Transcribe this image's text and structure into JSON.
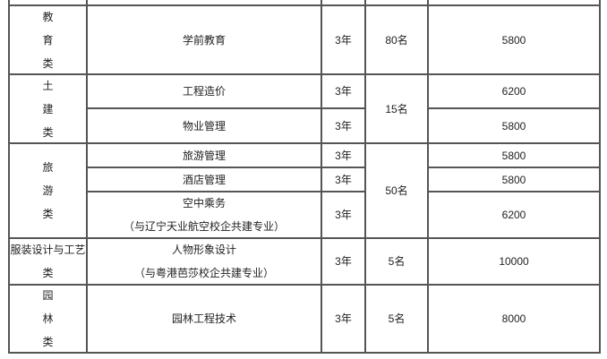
{
  "rows": [
    {
      "category": [
        "教",
        "育",
        "类"
      ],
      "majors": [
        {
          "name": "学前教育",
          "years": "3年",
          "fee": "5800"
        }
      ],
      "quota": "80名"
    },
    {
      "category": [
        "土",
        "建",
        "类"
      ],
      "majors": [
        {
          "name": "工程造价",
          "years": "3年",
          "fee": "6200"
        },
        {
          "name": "物业管理",
          "years": "3年",
          "fee": "5800"
        }
      ],
      "quota": "15名"
    },
    {
      "category": [
        "旅",
        "游",
        "类"
      ],
      "majors": [
        {
          "name": "旅游管理",
          "years": "3年",
          "fee": "5800"
        },
        {
          "name": "酒店管理",
          "years": "3年",
          "fee": "5800"
        },
        {
          "name": "空中乘务",
          "note": "（与辽宁天业航空校企共建专业）",
          "years": "3年",
          "fee": "6200"
        }
      ],
      "quota": "50名"
    },
    {
      "category": [
        "服装设计与工艺",
        "类"
      ],
      "majors": [
        {
          "name": "人物形象设计",
          "note": "（与粤港芭莎校企共建专业）",
          "years": "3年",
          "fee": "10000"
        }
      ],
      "quota": "5名"
    },
    {
      "category": [
        "园",
        "林",
        "类"
      ],
      "majors": [
        {
          "name": "园林工程技术",
          "years": "3年",
          "fee": "8000"
        }
      ],
      "quota": "5名"
    }
  ]
}
